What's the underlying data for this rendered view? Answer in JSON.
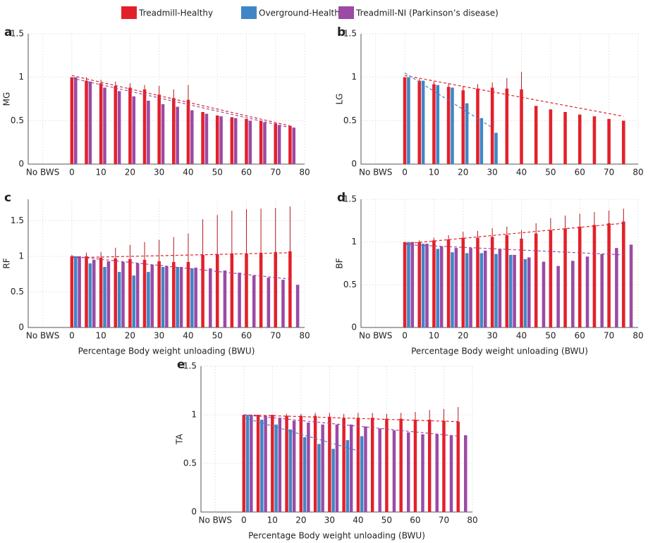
{
  "legend": [
    {
      "name": "Treadmill-Healthy",
      "color": "#e3202a"
    },
    {
      "name": "Overground-Healthy",
      "color": "#3f86c6"
    },
    {
      "name": "Treadmill-NI (Parkinson’s disease)",
      "color": "#9b4aa5"
    }
  ],
  "chart_data": [
    {
      "type": "bar",
      "panel": "a",
      "ylabel": "MG",
      "xlim": [
        -15,
        80
      ],
      "xticks": [
        {
          "value": -10,
          "label": "No BWS"
        },
        0,
        10,
        20,
        30,
        40,
        50,
        60,
        70,
        80
      ],
      "ylim": [
        0,
        1.5
      ],
      "yticks": [
        0,
        0.5,
        1,
        1.5
      ],
      "x": [
        0,
        5,
        10,
        15,
        20,
        25,
        30,
        35,
        40,
        45,
        50,
        55,
        60,
        65,
        70,
        75
      ],
      "series": [
        {
          "name": "Treadmill-Healthy",
          "values": [
            1.0,
            0.96,
            0.93,
            0.9,
            0.88,
            0.86,
            0.8,
            0.76,
            0.74,
            0.6,
            0.56,
            0.54,
            0.52,
            0.5,
            0.47,
            0.44
          ],
          "errors": [
            0,
            0.04,
            0.04,
            0.05,
            0.05,
            0.05,
            0.1,
            0.1,
            0.17,
            null,
            null,
            null,
            null,
            null,
            null,
            null
          ]
        },
        {
          "name": "Treadmill-NI (Parkinson’s disease)",
          "values": [
            1.0,
            0.95,
            0.88,
            0.84,
            0.78,
            0.73,
            0.69,
            0.66,
            0.62,
            0.58,
            0.55,
            0.53,
            0.5,
            0.48,
            0.45,
            0.42
          ]
        }
      ],
      "trends": [
        {
          "color": "#e3202a",
          "x": [
            0,
            75
          ],
          "y": [
            1.02,
            0.44
          ]
        },
        {
          "color": "#9b4aa5",
          "x": [
            0,
            75
          ],
          "y": [
            0.99,
            0.42
          ]
        }
      ]
    },
    {
      "type": "bar",
      "panel": "b",
      "ylabel": "LG",
      "xlim": [
        -15,
        80
      ],
      "xticks": [
        {
          "value": -10,
          "label": "No BWS"
        },
        0,
        10,
        20,
        30,
        40,
        50,
        60,
        70,
        80
      ],
      "ylim": [
        0,
        1.5
      ],
      "yticks": [
        0,
        0.5,
        1,
        1.5
      ],
      "x": [
        0,
        5,
        10,
        15,
        20,
        25,
        30,
        35,
        40,
        45,
        50,
        55,
        60,
        65,
        70,
        75
      ],
      "series": [
        {
          "name": "Treadmill-Healthy",
          "values": [
            1.0,
            0.96,
            0.92,
            0.89,
            0.85,
            0.87,
            0.88,
            0.87,
            0.86,
            0.67,
            0.63,
            0.6,
            0.57,
            0.55,
            0.52,
            0.5
          ],
          "errors": [
            0,
            0.02,
            0.03,
            0.04,
            0.05,
            0.05,
            0.06,
            0.12,
            0.2,
            null,
            null,
            null,
            null,
            null,
            null,
            null
          ]
        },
        {
          "name": "Overground-Healthy",
          "values": [
            1.0,
            0.96,
            0.91,
            0.88,
            0.7,
            0.53,
            0.36,
            null,
            null,
            null,
            null,
            null,
            null,
            null,
            null,
            null
          ]
        }
      ],
      "trends": [
        {
          "color": "#e3202a",
          "x": [
            0,
            75
          ],
          "y": [
            1.02,
            0.55
          ]
        },
        {
          "color": "#3f86c6",
          "x": [
            0,
            30
          ],
          "y": [
            1.05,
            0.42
          ]
        }
      ]
    },
    {
      "type": "bar",
      "panel": "c",
      "ylabel": "RF",
      "xlabel": "Percentage Body weight unloading (BWU)",
      "xlim": [
        -15,
        80
      ],
      "xticks": [
        {
          "value": -10,
          "label": "No BWS"
        },
        0,
        10,
        20,
        30,
        40,
        50,
        60,
        70,
        80
      ],
      "ylim": [
        0,
        1.8
      ],
      "yticks": [
        0,
        0.5,
        1,
        1.5
      ],
      "x": [
        0,
        5,
        10,
        15,
        20,
        25,
        30,
        35,
        40,
        45,
        50,
        55,
        60,
        65,
        70,
        75
      ],
      "series": [
        {
          "name": "Treadmill-Healthy",
          "values": [
            1.0,
            1.0,
            0.98,
            0.97,
            0.96,
            0.95,
            0.93,
            0.92,
            0.92,
            1.02,
            1.03,
            1.04,
            1.04,
            1.05,
            1.06,
            1.07
          ],
          "errors": [
            0.02,
            0.05,
            0.08,
            0.15,
            0.2,
            0.25,
            0.3,
            0.35,
            0.4,
            0.5,
            0.55,
            0.6,
            0.62,
            0.62,
            0.62,
            0.63
          ]
        },
        {
          "name": "Overground-Healthy",
          "values": [
            1.0,
            0.9,
            0.85,
            0.78,
            0.73,
            0.78,
            0.85,
            0.85,
            0.83,
            null,
            null,
            null,
            null,
            null,
            null,
            null
          ]
        },
        {
          "name": "Treadmill-NI (Parkinson’s disease)",
          "values": [
            1.0,
            0.95,
            0.93,
            0.92,
            0.9,
            0.88,
            0.86,
            0.85,
            0.84,
            0.83,
            0.8,
            0.77,
            0.73,
            0.7,
            0.67,
            0.6
          ]
        }
      ],
      "trends": [
        {
          "color": "#e3202a",
          "x": [
            0,
            75
          ],
          "y": [
            0.98,
            1.05
          ]
        },
        {
          "color": "#9b4aa5",
          "x": [
            0,
            75
          ],
          "y": [
            1.0,
            0.68
          ]
        }
      ]
    },
    {
      "type": "bar",
      "panel": "d",
      "ylabel": "BF",
      "xlabel": "Percentage Body weight unloading (BWU)",
      "xlim": [
        -15,
        80
      ],
      "xticks": [
        {
          "value": -10,
          "label": "No BWS"
        },
        0,
        10,
        20,
        30,
        40,
        50,
        60,
        70,
        80
      ],
      "ylim": [
        0,
        1.5
      ],
      "yticks": [
        0,
        0.5,
        1,
        1.5
      ],
      "x": [
        0,
        5,
        10,
        15,
        20,
        25,
        30,
        35,
        40,
        45,
        50,
        55,
        60,
        65,
        70,
        75
      ],
      "series": [
        {
          "name": "Treadmill-Healthy",
          "values": [
            1.0,
            1.0,
            1.02,
            1.03,
            1.05,
            1.05,
            1.06,
            1.08,
            1.04,
            1.1,
            1.14,
            1.16,
            1.18,
            1.2,
            1.22,
            1.24
          ],
          "errors": [
            0,
            0.02,
            0.03,
            0.05,
            0.07,
            0.08,
            0.1,
            0.1,
            0.1,
            0.12,
            0.14,
            0.15,
            0.15,
            0.15,
            0.15,
            0.15
          ]
        },
        {
          "name": "Overground-Healthy",
          "values": [
            1.0,
            0.98,
            0.92,
            0.88,
            0.87,
            0.87,
            0.86,
            0.85,
            0.8,
            null,
            null,
            null,
            null,
            null,
            null,
            null
          ]
        },
        {
          "name": "Treadmill-NI (Parkinson’s disease)",
          "values": [
            1.0,
            0.98,
            0.95,
            0.93,
            0.93,
            0.9,
            0.92,
            0.85,
            0.82,
            0.77,
            0.72,
            0.78,
            0.83,
            0.86,
            0.93,
            0.97
          ]
        }
      ],
      "trends": [
        {
          "color": "#e3202a",
          "x": [
            0,
            75
          ],
          "y": [
            0.98,
            1.22
          ]
        },
        {
          "color": "#9b4aa5",
          "x": [
            0,
            75
          ],
          "y": [
            0.97,
            0.85
          ]
        }
      ]
    },
    {
      "type": "bar",
      "panel": "e",
      "ylabel": "TA",
      "xlabel": "Percentage Body weight unloading (BWU)",
      "xlim": [
        -15,
        80
      ],
      "xticks": [
        {
          "value": -10,
          "label": "No BWS"
        },
        0,
        10,
        20,
        30,
        40,
        50,
        60,
        70,
        80
      ],
      "ylim": [
        0,
        1.5
      ],
      "yticks": [
        0,
        0.5,
        1,
        1.5
      ],
      "x": [
        0,
        5,
        10,
        15,
        20,
        25,
        30,
        35,
        40,
        45,
        50,
        55,
        60,
        65,
        70,
        75
      ],
      "series": [
        {
          "name": "Treadmill-Healthy",
          "values": [
            1.0,
            1.0,
            1.0,
            0.99,
            0.99,
            0.99,
            0.98,
            0.97,
            0.97,
            0.97,
            0.96,
            0.96,
            0.95,
            0.95,
            0.94,
            0.93
          ],
          "errors": [
            0,
            0,
            0,
            0.02,
            0.02,
            0.03,
            0.04,
            0.04,
            0.05,
            0.05,
            0.05,
            0.06,
            0.08,
            0.1,
            0.12,
            0.15
          ]
        },
        {
          "name": "Overground-Healthy",
          "values": [
            1.0,
            0.95,
            0.9,
            0.85,
            0.77,
            0.7,
            0.65,
            0.74,
            0.78,
            null,
            null,
            null,
            null,
            null,
            null,
            null
          ]
        },
        {
          "name": "Treadmill-NI (Parkinson’s disease)",
          "values": [
            1.0,
            0.99,
            0.97,
            0.94,
            0.92,
            0.9,
            0.9,
            0.9,
            0.88,
            0.86,
            0.84,
            0.82,
            0.8,
            0.8,
            0.79,
            0.79
          ]
        }
      ],
      "trends": [
        {
          "color": "#e3202a",
          "x": [
            0,
            75
          ],
          "y": [
            1.0,
            0.93
          ]
        },
        {
          "color": "#3f86c6",
          "x": [
            0,
            40
          ],
          "y": [
            0.97,
            0.63
          ]
        },
        {
          "color": "#9b4aa5",
          "x": [
            0,
            75
          ],
          "y": [
            1.0,
            0.78
          ]
        }
      ]
    }
  ]
}
